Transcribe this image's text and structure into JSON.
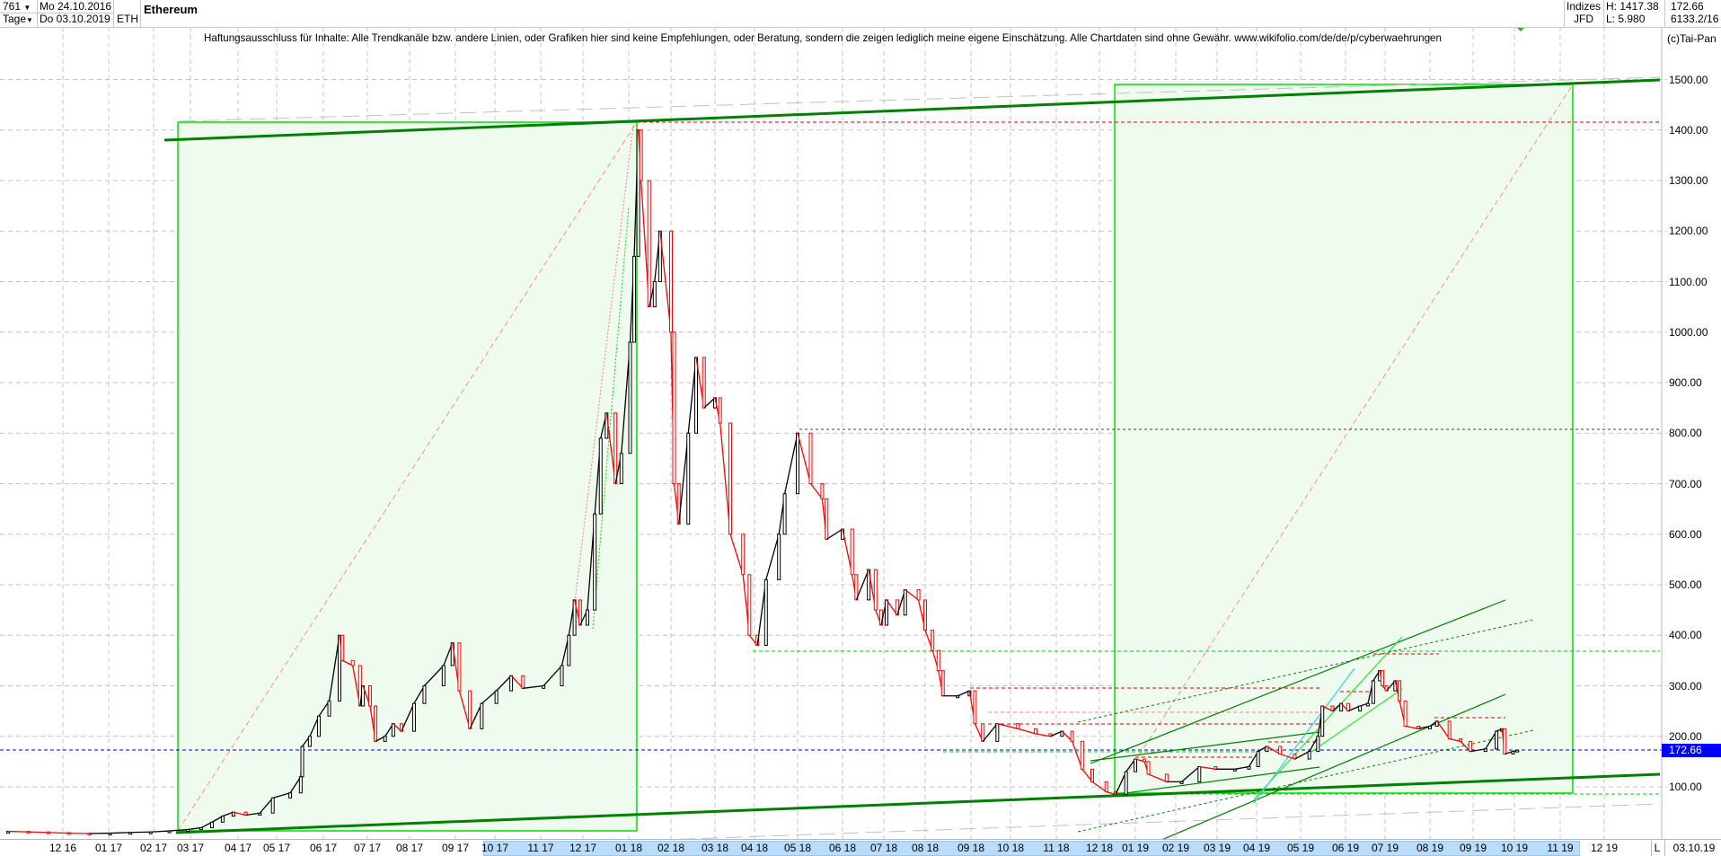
{
  "header": {
    "bar_count": "761",
    "period": "Tage",
    "start_date": "Mo 24.10.2016",
    "end_date": "Do 03.10.2019",
    "symbol": "ETH",
    "title": "Ethereum",
    "market": "Indizes",
    "exchange": "JFD",
    "high": "H: 1417.38",
    "low": "L: 5.980",
    "last": "172.66",
    "volume_info": "6133.2/16",
    "dropdown_icon": "triangle-down"
  },
  "disclaimer": "Haftungsausschluss für Inhalte: Alle Trendkanäle bzw. andere Linien, oder Grafiken hier sind keine Empfehlungen, oder Beratung, sondern die zeigen lediglich meine eigene Einschätzung. Alle Chartdaten sind ohne Gewähr.  www.wikifolio.com/de/de/p/cyberwaehrungen",
  "copyright": "(c)Tai-Pan",
  "footer": {
    "scale_mode": "L",
    "current_date": "03.10.19"
  },
  "colors": {
    "up": "#000000",
    "down": "#ff0000",
    "trend_green": "#008000",
    "box_border": "#00e000",
    "box_fill": "#f0fbef",
    "last_price": "#0000ff",
    "axis_selection": "#b8dcfa"
  },
  "chart_data": {
    "type": "line",
    "title": "Ethereum",
    "y_scale": "linear",
    "ylim": [
      0,
      1550
    ],
    "y_ticks": [
      "100.00",
      "200.00",
      "300.00",
      "400.00",
      "500.00",
      "600.00",
      "700.00",
      "800.00",
      "900.00",
      "1000.00",
      "1100.00",
      "1200.00",
      "1300.00",
      "1400.00",
      "1500.00"
    ],
    "x_ticks": [
      "12 16",
      "01 17",
      "02 17",
      "03 17",
      "04 17",
      "05 17",
      "06 17",
      "07 17",
      "08 17",
      "09 17",
      "10 17",
      "11 17",
      "12 17",
      "01 18",
      "02 18",
      "03 18",
      "04 18",
      "05 18",
      "06 18",
      "07 18",
      "08 18",
      "09 18",
      "10 18",
      "11 18",
      "12 18",
      "01 19",
      "02 19",
      "03 19",
      "04 19",
      "05 19",
      "06 19",
      "07 19",
      "08 19",
      "09 19",
      "10 19",
      "11 19",
      "12 19"
    ],
    "grid": true,
    "last_price_label": "172.66",
    "reference_levels": [
      1417.38,
      807,
      368,
      296,
      172.66
    ],
    "series": [
      {
        "values": [
          [
            "2016-10-24",
            11.9
          ],
          [
            "2016-11-07",
            10.9
          ],
          [
            "2016-11-21",
            9.5
          ],
          [
            "2016-12-05",
            8.2
          ],
          [
            "2016-12-19",
            7.6
          ],
          [
            "2017-01-02",
            8.3
          ],
          [
            "2017-01-16",
            9.8
          ],
          [
            "2017-01-30",
            10.7
          ],
          [
            "2017-02-13",
            12.8
          ],
          [
            "2017-02-27",
            15.5
          ],
          [
            "2017-03-08",
            19
          ],
          [
            "2017-03-15",
            30
          ],
          [
            "2017-03-22",
            42
          ],
          [
            "2017-03-29",
            50
          ],
          [
            "2017-04-07",
            44
          ],
          [
            "2017-04-18",
            48
          ],
          [
            "2017-04-28",
            78
          ],
          [
            "2017-05-10",
            88
          ],
          [
            "2017-05-17",
            120
          ],
          [
            "2017-05-18",
            180
          ],
          [
            "2017-05-23",
            200
          ],
          [
            "2017-05-29",
            240
          ],
          [
            "2017-06-05",
            270
          ],
          [
            "2017-06-12",
            400
          ],
          [
            "2017-06-14",
            350
          ],
          [
            "2017-06-21",
            340
          ],
          [
            "2017-06-26",
            260
          ],
          [
            "2017-06-28",
            300
          ],
          [
            "2017-07-03",
            260
          ],
          [
            "2017-07-07",
            190
          ],
          [
            "2017-07-14",
            200
          ],
          [
            "2017-07-20",
            225
          ],
          [
            "2017-07-26",
            210
          ],
          [
            "2017-08-04",
            265
          ],
          [
            "2017-08-11",
            300
          ],
          [
            "2017-08-24",
            340
          ],
          [
            "2017-08-30",
            385
          ],
          [
            "2017-09-04",
            290
          ],
          [
            "2017-09-12",
            215
          ],
          [
            "2017-09-21",
            265
          ],
          [
            "2017-10-02",
            290
          ],
          [
            "2017-10-12",
            320
          ],
          [
            "2017-10-20",
            295
          ],
          [
            "2017-11-03",
            300
          ],
          [
            "2017-11-16",
            340
          ],
          [
            "2017-11-21",
            400
          ],
          [
            "2017-11-25",
            470
          ],
          [
            "2017-11-29",
            420
          ],
          [
            "2017-12-04",
            450
          ],
          [
            "2017-12-09",
            640
          ],
          [
            "2017-12-13",
            790
          ],
          [
            "2017-12-17",
            840
          ],
          [
            "2017-12-23",
            700
          ],
          [
            "2017-12-27",
            760
          ],
          [
            "2018-01-02",
            980
          ],
          [
            "2018-01-05",
            1150
          ],
          [
            "2018-01-08",
            1400
          ],
          [
            "2018-01-10",
            1300
          ],
          [
            "2018-01-16",
            1050
          ],
          [
            "2018-01-20",
            1100
          ],
          [
            "2018-01-24",
            1200
          ],
          [
            "2018-02-01",
            1000
          ],
          [
            "2018-02-03",
            700
          ],
          [
            "2018-02-06",
            620
          ],
          [
            "2018-02-12",
            800
          ],
          [
            "2018-02-17",
            950
          ],
          [
            "2018-02-22",
            850
          ],
          [
            "2018-03-01",
            870
          ],
          [
            "2018-03-05",
            820
          ],
          [
            "2018-03-13",
            600
          ],
          [
            "2018-03-23",
            520
          ],
          [
            "2018-03-28",
            400
          ],
          [
            "2018-04-03",
            380
          ],
          [
            "2018-04-09",
            510
          ],
          [
            "2018-04-18",
            600
          ],
          [
            "2018-04-22",
            680
          ],
          [
            "2018-05-01",
            800
          ],
          [
            "2018-05-10",
            700
          ],
          [
            "2018-05-18",
            670
          ],
          [
            "2018-05-21",
            590
          ],
          [
            "2018-06-01",
            610
          ],
          [
            "2018-06-08",
            520
          ],
          [
            "2018-06-11",
            470
          ],
          [
            "2018-06-20",
            530
          ],
          [
            "2018-06-25",
            450
          ],
          [
            "2018-06-29",
            420
          ],
          [
            "2018-07-03",
            470
          ],
          [
            "2018-07-11",
            440
          ],
          [
            "2018-07-17",
            490
          ],
          [
            "2018-07-27",
            470
          ],
          [
            "2018-08-01",
            410
          ],
          [
            "2018-08-06",
            370
          ],
          [
            "2018-08-10",
            330
          ],
          [
            "2018-08-13",
            280
          ],
          [
            "2018-08-23",
            280
          ],
          [
            "2018-08-31",
            290
          ],
          [
            "2018-09-04",
            225
          ],
          [
            "2018-09-10",
            190
          ],
          [
            "2018-09-21",
            225
          ],
          [
            "2018-10-06",
            215
          ],
          [
            "2018-10-18",
            205
          ],
          [
            "2018-10-28",
            200
          ],
          [
            "2018-11-05",
            210
          ],
          [
            "2018-11-12",
            190
          ],
          [
            "2018-11-19",
            135
          ],
          [
            "2018-11-26",
            110
          ],
          [
            "2018-12-07",
            90
          ],
          [
            "2018-12-15",
            85
          ],
          [
            "2018-12-24",
            130
          ],
          [
            "2019-01-01",
            155
          ],
          [
            "2019-01-08",
            150
          ],
          [
            "2019-01-11",
            125
          ],
          [
            "2019-01-25",
            110
          ],
          [
            "2019-02-05",
            110
          ],
          [
            "2019-02-17",
            140
          ],
          [
            "2019-02-28",
            135
          ],
          [
            "2019-03-15",
            135
          ],
          [
            "2019-03-26",
            140
          ],
          [
            "2019-04-02",
            170
          ],
          [
            "2019-04-08",
            180
          ],
          [
            "2019-04-17",
            165
          ],
          [
            "2019-04-27",
            155
          ],
          [
            "2019-05-07",
            170
          ],
          [
            "2019-05-13",
            200
          ],
          [
            "2019-05-16",
            260
          ],
          [
            "2019-05-23",
            250
          ],
          [
            "2019-05-29",
            265
          ],
          [
            "2019-06-03",
            250
          ],
          [
            "2019-06-12",
            260
          ],
          [
            "2019-06-18",
            265
          ],
          [
            "2019-06-22",
            310
          ],
          [
            "2019-06-27",
            330
          ],
          [
            "2019-06-29",
            300
          ],
          [
            "2019-07-02",
            290
          ],
          [
            "2019-07-08",
            310
          ],
          [
            "2019-07-11",
            270
          ],
          [
            "2019-07-15",
            220
          ],
          [
            "2019-07-24",
            215
          ],
          [
            "2019-08-01",
            220
          ],
          [
            "2019-08-06",
            230
          ],
          [
            "2019-08-15",
            195
          ],
          [
            "2019-08-23",
            190
          ],
          [
            "2019-08-30",
            170
          ],
          [
            "2019-09-10",
            175
          ],
          [
            "2019-09-18",
            210
          ],
          [
            "2019-09-22",
            215
          ],
          [
            "2019-09-24",
            165
          ],
          [
            "2019-09-30",
            170
          ],
          [
            "2019-10-03",
            172.66
          ]
        ]
      }
    ]
  }
}
